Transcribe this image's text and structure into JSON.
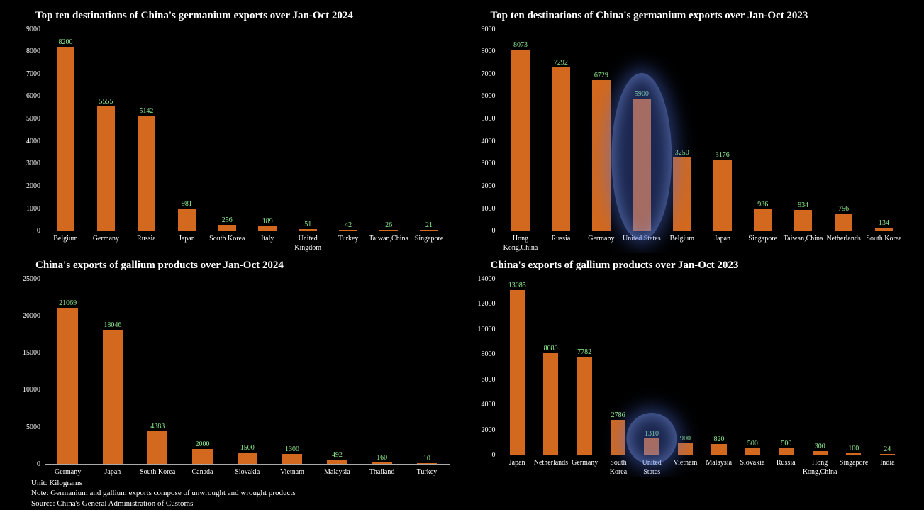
{
  "colors": {
    "background": "#000000",
    "bar": "#D2691E",
    "value_label": "#90EE90",
    "axis": "#aaaaaa",
    "text": "#ffffff",
    "highlight": "#5073E6"
  },
  "footer": {
    "lines": [
      "Unit: Kilograms",
      "Note: Germanium and gallium exports compose of unwrought and wrought products",
      "Source: China's General Administration of Customs"
    ]
  },
  "chart_data": [
    {
      "id": "germanium-2024",
      "type": "bar",
      "title": "Top ten destinations of China's germanium exports over Jan-Oct 2024",
      "categories": [
        "Belgium",
        "Germany",
        "Russia",
        "Japan",
        "South Korea",
        "Italy",
        "United Kingdom",
        "Turkey",
        "Taiwan,China",
        "Singapore"
      ],
      "values": [
        8200,
        5555,
        5142,
        981,
        256,
        189,
        51,
        42,
        26,
        21
      ],
      "ylim": [
        0,
        9000
      ],
      "ytick_step": 1000,
      "grid": false,
      "legend": false,
      "highlight": null
    },
    {
      "id": "germanium-2023",
      "type": "bar",
      "title": "Top ten destinations of China's germanium exports over Jan-Oct 2023",
      "categories": [
        "Hong Kong,China",
        "Russia",
        "Germany",
        "United States",
        "Belgium",
        "Japan",
        "Singapore",
        "Taiwan,China",
        "Netherlands",
        "South Korea"
      ],
      "values": [
        8073,
        7292,
        6729,
        5900,
        3250,
        3176,
        936,
        934,
        756,
        134
      ],
      "ylim": [
        0,
        9000
      ],
      "ytick_step": 1000,
      "grid": false,
      "legend": false,
      "highlight": {
        "category": "United States",
        "shape": "ellipse"
      }
    },
    {
      "id": "gallium-2024",
      "type": "bar",
      "title": "China's exports of gallium products over Jan-Oct 2024",
      "categories": [
        "Germany",
        "Japan",
        "South Korea",
        "Canada",
        "Slovakia",
        "Vietnam",
        "Malaysia",
        "Thailand",
        "Turkey"
      ],
      "values": [
        21069,
        18046,
        4383,
        2000,
        1500,
        1300,
        492,
        160,
        10
      ],
      "ylim": [
        0,
        25000
      ],
      "ytick_step": 5000,
      "grid": false,
      "legend": false,
      "highlight": null
    },
    {
      "id": "gallium-2023",
      "type": "bar",
      "title": "China's exports of gallium products over Jan-Oct 2023",
      "categories": [
        "Japan",
        "Netherlands",
        "Germany",
        "South Korea",
        "United States",
        "Vietnam",
        "Malaysia",
        "Slovakia",
        "Russia",
        "Hong Kong,China",
        "Singapore",
        "India"
      ],
      "values": [
        13085,
        8080,
        7782,
        2786,
        1310,
        900,
        820,
        500,
        500,
        300,
        100,
        24
      ],
      "ylim": [
        0,
        14000
      ],
      "ytick_step": 2000,
      "grid": false,
      "legend": false,
      "highlight": {
        "category": "United States",
        "shape": "ellipse"
      }
    }
  ]
}
